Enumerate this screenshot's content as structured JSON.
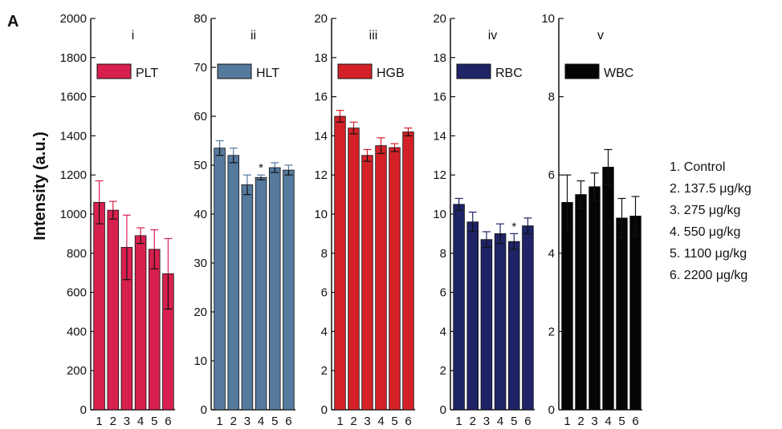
{
  "figure": {
    "panel_letter": "A",
    "ylabel": "Intensity (a.u.)",
    "dose_key": [
      "1.  Control",
      "2.  137.5 μg/kg",
      "3.  275 μg/kg",
      "4.  550 μg/kg",
      "5.  1100 μg/kg",
      "6.  2200 μg/kg"
    ]
  },
  "chart_data": [
    {
      "type": "bar",
      "title": "i",
      "series": [
        {
          "name": "PLT",
          "color": "#d8204f",
          "values": [
            1060,
            1020,
            830,
            890,
            820,
            695
          ],
          "errors": [
            110,
            45,
            165,
            40,
            100,
            180
          ]
        }
      ],
      "categories": [
        "1",
        "2",
        "3",
        "4",
        "5",
        "6"
      ],
      "yticks": [
        "0",
        "200",
        "400",
        "600",
        "800",
        "1000",
        "1200",
        "1400",
        "1600",
        "1800",
        "2000"
      ],
      "ylim": [
        0,
        2000
      ],
      "annotations": []
    },
    {
      "type": "bar",
      "title": "ii",
      "series": [
        {
          "name": "HLT",
          "color": "#557a9d",
          "values": [
            53.5,
            52,
            46,
            47.5,
            49.5,
            49
          ],
          "errors": [
            1.5,
            1.5,
            2,
            0.5,
            1,
            1
          ]
        }
      ],
      "categories": [
        "1",
        "2",
        "3",
        "4",
        "5",
        "6"
      ],
      "yticks": [
        "0",
        "10",
        "20",
        "30",
        "40",
        "50",
        "60",
        "70",
        "80"
      ],
      "ylim": [
        0,
        80
      ],
      "annotations": [
        {
          "index": 3,
          "text": "*"
        }
      ]
    },
    {
      "type": "bar",
      "title": "iii",
      "series": [
        {
          "name": "HGB",
          "color": "#d42128",
          "values": [
            15,
            14.4,
            13,
            13.5,
            13.4,
            14.2
          ],
          "errors": [
            0.3,
            0.3,
            0.3,
            0.4,
            0.2,
            0.2
          ]
        }
      ],
      "categories": [
        "1",
        "2",
        "3",
        "4",
        "5",
        "6"
      ],
      "yticks": [
        "0",
        "2",
        "4",
        "6",
        "8",
        "10",
        "12",
        "14",
        "16",
        "18",
        "20"
      ],
      "ylim": [
        0,
        20
      ],
      "annotations": []
    },
    {
      "type": "bar",
      "title": "iv",
      "series": [
        {
          "name": "RBC",
          "color": "#1f2466",
          "values": [
            10.5,
            9.6,
            8.7,
            9,
            8.6,
            9.4
          ],
          "errors": [
            0.3,
            0.5,
            0.4,
            0.5,
            0.4,
            0.4
          ]
        }
      ],
      "categories": [
        "1",
        "2",
        "3",
        "4",
        "5",
        "6"
      ],
      "yticks": [
        "0",
        "2",
        "4",
        "6",
        "8",
        "10",
        "12",
        "14",
        "16",
        "18",
        "20"
      ],
      "ylim": [
        0,
        20
      ],
      "annotations": [
        {
          "index": 4,
          "text": "*"
        }
      ]
    },
    {
      "type": "bar",
      "title": "v",
      "series": [
        {
          "name": "WBC",
          "color": "#050505",
          "values": [
            5.3,
            5.5,
            5.7,
            6.2,
            4.9,
            4.95
          ],
          "errors": [
            0.7,
            0.35,
            0.35,
            0.45,
            0.5,
            0.5
          ]
        }
      ],
      "categories": [
        "1",
        "2",
        "3",
        "4",
        "5",
        "6"
      ],
      "yticks": [
        "0",
        "2",
        "4",
        "6",
        "8",
        "10"
      ],
      "ylim": [
        0,
        10
      ],
      "annotations": []
    }
  ]
}
